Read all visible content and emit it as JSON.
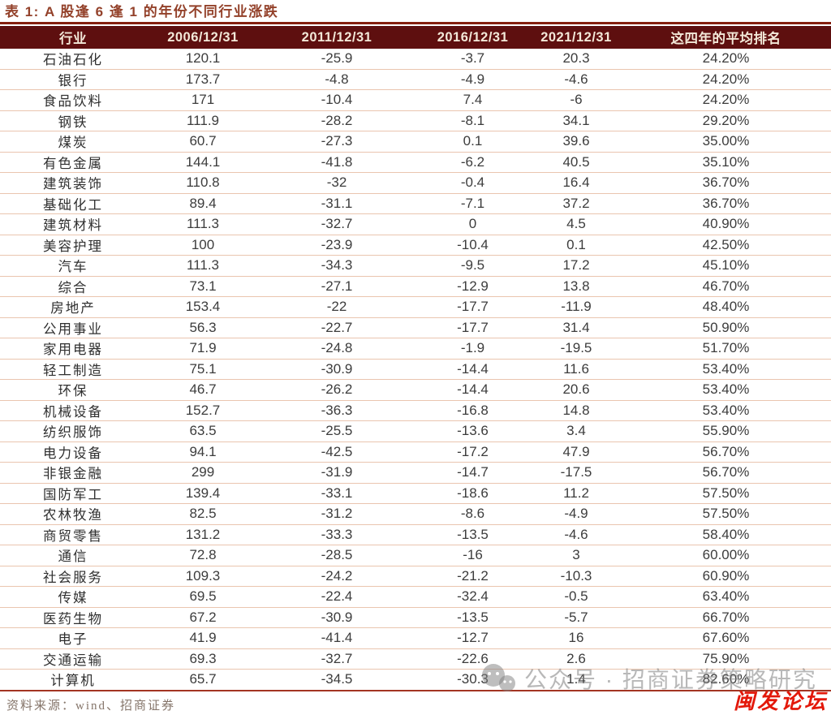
{
  "page_title": "表 1: A 股逢 6 逢 1 的年份不同行业涨跌",
  "chart_data": {
    "type": "table",
    "title": "表 1: A 股逢 6 逢 1 的年份不同行业涨跌",
    "columns": [
      "行业",
      "2006/12/31",
      "2011/12/31",
      "2016/12/31",
      "2021/12/31",
      "这四年的平均排名"
    ],
    "rows": [
      [
        "石油石化",
        "120.1",
        "-25.9",
        "-3.7",
        "20.3",
        "24.20%"
      ],
      [
        "银行",
        "173.7",
        "-4.8",
        "-4.9",
        "-4.6",
        "24.20%"
      ],
      [
        "食品饮料",
        "171",
        "-10.4",
        "7.4",
        "-6",
        "24.20%"
      ],
      [
        "钢铁",
        "111.9",
        "-28.2",
        "-8.1",
        "34.1",
        "29.20%"
      ],
      [
        "煤炭",
        "60.7",
        "-27.3",
        "0.1",
        "39.6",
        "35.00%"
      ],
      [
        "有色金属",
        "144.1",
        "-41.8",
        "-6.2",
        "40.5",
        "35.10%"
      ],
      [
        "建筑装饰",
        "110.8",
        "-32",
        "-0.4",
        "16.4",
        "36.70%"
      ],
      [
        "基础化工",
        "89.4",
        "-31.1",
        "-7.1",
        "37.2",
        "36.70%"
      ],
      [
        "建筑材料",
        "111.3",
        "-32.7",
        "0",
        "4.5",
        "40.90%"
      ],
      [
        "美容护理",
        "100",
        "-23.9",
        "-10.4",
        "0.1",
        "42.50%"
      ],
      [
        "汽车",
        "111.3",
        "-34.3",
        "-9.5",
        "17.2",
        "45.10%"
      ],
      [
        "综合",
        "73.1",
        "-27.1",
        "-12.9",
        "13.8",
        "46.70%"
      ],
      [
        "房地产",
        "153.4",
        "-22",
        "-17.7",
        "-11.9",
        "48.40%"
      ],
      [
        "公用事业",
        "56.3",
        "-22.7",
        "-17.7",
        "31.4",
        "50.90%"
      ],
      [
        "家用电器",
        "71.9",
        "-24.8",
        "-1.9",
        "-19.5",
        "51.70%"
      ],
      [
        "轻工制造",
        "75.1",
        "-30.9",
        "-14.4",
        "11.6",
        "53.40%"
      ],
      [
        "环保",
        "46.7",
        "-26.2",
        "-14.4",
        "20.6",
        "53.40%"
      ],
      [
        "机械设备",
        "152.7",
        "-36.3",
        "-16.8",
        "14.8",
        "53.40%"
      ],
      [
        "纺织服饰",
        "63.5",
        "-25.5",
        "-13.6",
        "3.4",
        "55.90%"
      ],
      [
        "电力设备",
        "94.1",
        "-42.5",
        "-17.2",
        "47.9",
        "56.70%"
      ],
      [
        "非银金融",
        "299",
        "-31.9",
        "-14.7",
        "-17.5",
        "56.70%"
      ],
      [
        "国防军工",
        "139.4",
        "-33.1",
        "-18.6",
        "11.2",
        "57.50%"
      ],
      [
        "农林牧渔",
        "82.5",
        "-31.2",
        "-8.6",
        "-4.9",
        "57.50%"
      ],
      [
        "商贸零售",
        "131.2",
        "-33.3",
        "-13.5",
        "-4.6",
        "58.40%"
      ],
      [
        "通信",
        "72.8",
        "-28.5",
        "-16",
        "3",
        "60.00%"
      ],
      [
        "社会服务",
        "109.3",
        "-24.2",
        "-21.2",
        "-10.3",
        "60.90%"
      ],
      [
        "传媒",
        "69.5",
        "-22.4",
        "-32.4",
        "-0.5",
        "63.40%"
      ],
      [
        "医药生物",
        "67.2",
        "-30.9",
        "-13.5",
        "-5.7",
        "66.70%"
      ],
      [
        "电子",
        "41.9",
        "-41.4",
        "-12.7",
        "16",
        "67.60%"
      ],
      [
        "交通运输",
        "69.3",
        "-32.7",
        "-22.6",
        "2.6",
        "75.90%"
      ],
      [
        "计算机",
        "65.7",
        "-34.5",
        "-30.3",
        "1.4",
        "82.60%"
      ]
    ],
    "layout": {
      "grid": "horizontal-row-dividers",
      "header_position": "top"
    }
  },
  "source_note": "资料来源：wind、招商证券",
  "watermark": {
    "icon": "wechat-icon",
    "text": "公众号 · 招商证券策略研究"
  },
  "corner_stamp": "闽发论坛",
  "colors": {
    "header_bg": "#5e0f0f",
    "header_text": "#f3e8d8",
    "title_text": "#93412a",
    "title_rule": "#85200f",
    "row_divider": "#eac5af",
    "table_bottom_rule": "#a33522",
    "data_text": "#3c3c3c",
    "source_text": "#85756a",
    "watermark_gray": "#7d7d7d",
    "stamp_red": "#e3180a"
  }
}
